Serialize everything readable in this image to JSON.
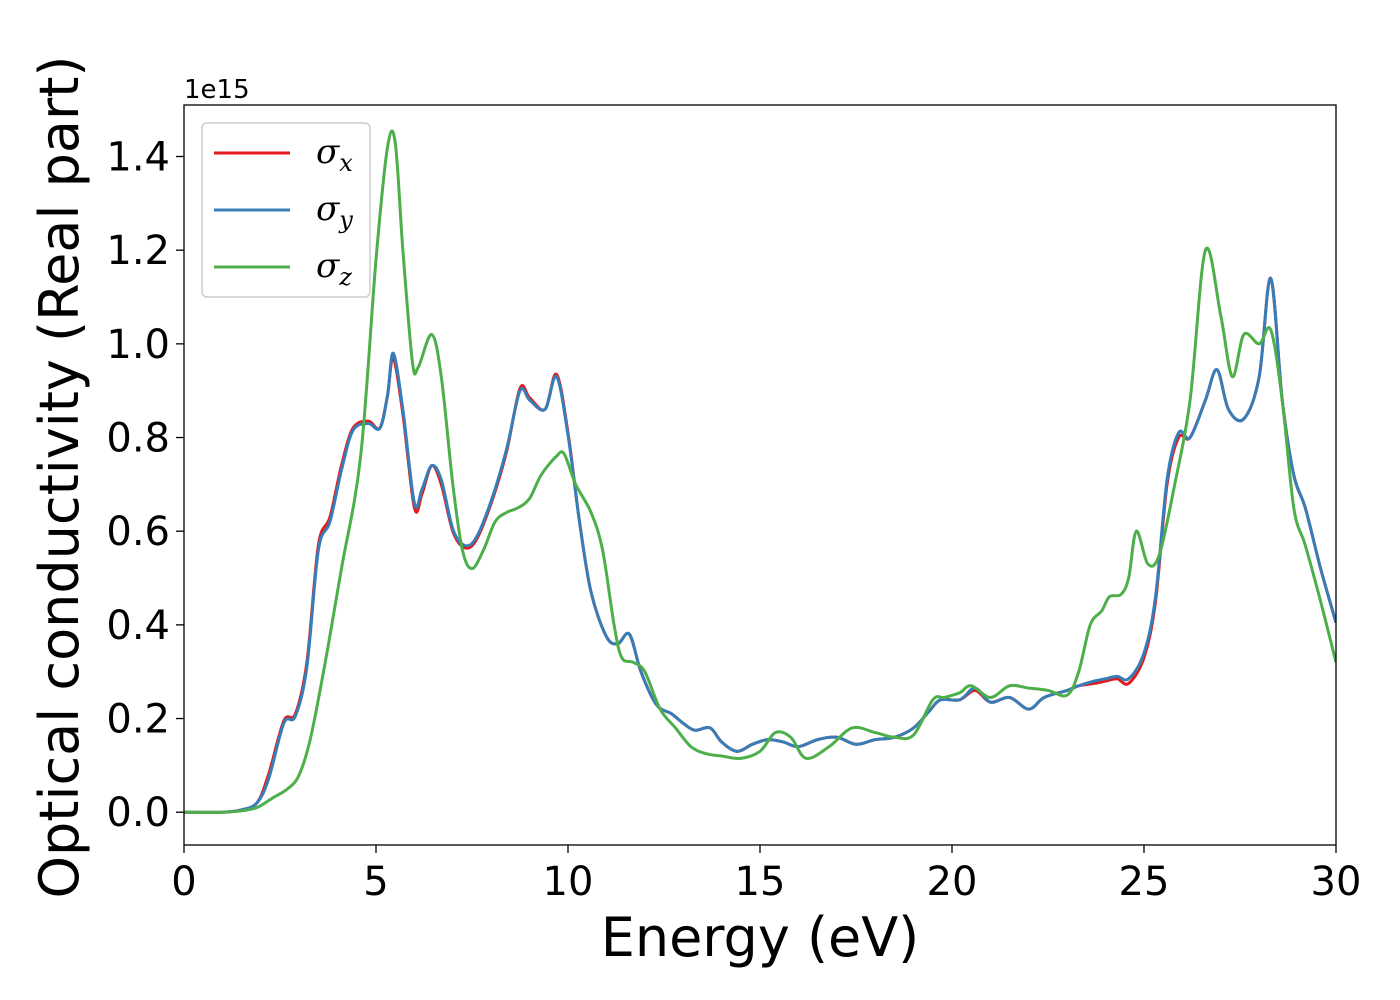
{
  "chart_data": {
    "type": "line",
    "xlabel": "Energy (eV)",
    "ylabel": "Optical conductivity (Real part)",
    "y_offset_label": "1e15",
    "xlim": [
      0,
      30
    ],
    "ylim": [
      -0.07,
      1.51
    ],
    "xticks": [
      0,
      5,
      10,
      15,
      20,
      25,
      30
    ],
    "xtick_labels": [
      "0",
      "5",
      "10",
      "15",
      "20",
      "25",
      "30"
    ],
    "yticks": [
      0.0,
      0.2,
      0.4,
      0.6,
      0.8,
      1.0,
      1.2,
      1.4
    ],
    "ytick_labels": [
      "0.0",
      "0.2",
      "0.4",
      "0.6",
      "0.8",
      "1.0",
      "1.2",
      "1.4"
    ],
    "grid": false,
    "legend_position": "top-left",
    "series": [
      {
        "name": "σx",
        "symbol": "σ",
        "subscript": "x",
        "color": "#e41a1c",
        "x": [
          0,
          1,
          1.5,
          1.9,
          2.2,
          2.6,
          2.9,
          3.2,
          3.5,
          3.8,
          4.1,
          4.4,
          4.8,
          5.1,
          5.3,
          5.45,
          5.7,
          6.0,
          6.2,
          6.45,
          6.7,
          7.0,
          7.3,
          7.6,
          8.0,
          8.4,
          8.75,
          9.0,
          9.4,
          9.7,
          10.0,
          10.3,
          10.6,
          11.0,
          11.3,
          11.6,
          11.9,
          12.3,
          12.7,
          13.0,
          13.3,
          13.7,
          14.0,
          14.4,
          14.8,
          15.2,
          15.6,
          16.0,
          16.5,
          17.0,
          17.5,
          18.0,
          18.5,
          19.0,
          19.4,
          19.7,
          20.2,
          20.6,
          21.0,
          21.5,
          22.0,
          22.4,
          23.0,
          23.3,
          23.7,
          24.0,
          24.3,
          24.6,
          25.0,
          25.3,
          25.6,
          25.9,
          26.2,
          26.6,
          26.9,
          27.2,
          27.6,
          28.0,
          28.3,
          28.6,
          28.9,
          29.2,
          29.6,
          30.0
        ],
        "y": [
          0.0,
          0.0,
          0.005,
          0.02,
          0.08,
          0.195,
          0.21,
          0.32,
          0.57,
          0.63,
          0.74,
          0.82,
          0.835,
          0.82,
          0.89,
          0.97,
          0.85,
          0.65,
          0.68,
          0.74,
          0.7,
          0.6,
          0.565,
          0.58,
          0.66,
          0.77,
          0.905,
          0.885,
          0.86,
          0.935,
          0.81,
          0.62,
          0.47,
          0.375,
          0.36,
          0.38,
          0.3,
          0.23,
          0.21,
          0.19,
          0.175,
          0.18,
          0.15,
          0.13,
          0.145,
          0.155,
          0.15,
          0.14,
          0.155,
          0.16,
          0.145,
          0.155,
          0.16,
          0.18,
          0.215,
          0.24,
          0.24,
          0.26,
          0.235,
          0.245,
          0.22,
          0.245,
          0.26,
          0.27,
          0.275,
          0.28,
          0.285,
          0.275,
          0.33,
          0.45,
          0.7,
          0.8,
          0.8,
          0.88,
          0.945,
          0.86,
          0.84,
          0.93,
          1.14,
          0.88,
          0.72,
          0.65,
          0.52,
          0.405
        ]
      },
      {
        "name": "σy",
        "symbol": "σ",
        "subscript": "y",
        "color": "#377eb8",
        "x": [
          0,
          1,
          1.5,
          1.9,
          2.2,
          2.6,
          2.9,
          3.2,
          3.5,
          3.8,
          4.1,
          4.4,
          4.8,
          5.1,
          5.3,
          5.45,
          5.7,
          6.0,
          6.2,
          6.45,
          6.7,
          7.0,
          7.3,
          7.6,
          8.0,
          8.4,
          8.75,
          9.0,
          9.4,
          9.7,
          10.0,
          10.3,
          10.6,
          11.0,
          11.3,
          11.6,
          11.9,
          12.3,
          12.7,
          13.0,
          13.3,
          13.7,
          14.0,
          14.4,
          14.8,
          15.2,
          15.6,
          16.0,
          16.5,
          17.0,
          17.5,
          18.0,
          18.5,
          19.0,
          19.4,
          19.7,
          20.2,
          20.6,
          21.0,
          21.5,
          22.0,
          22.4,
          23.0,
          23.3,
          23.7,
          24.0,
          24.3,
          24.6,
          25.0,
          25.3,
          25.6,
          25.9,
          26.2,
          26.6,
          26.9,
          27.2,
          27.6,
          28.0,
          28.3,
          28.6,
          28.9,
          29.2,
          29.6,
          30.0
        ],
        "y": [
          0.0,
          0.0,
          0.005,
          0.02,
          0.07,
          0.19,
          0.205,
          0.31,
          0.56,
          0.62,
          0.73,
          0.815,
          0.83,
          0.82,
          0.89,
          0.98,
          0.86,
          0.66,
          0.69,
          0.74,
          0.71,
          0.605,
          0.57,
          0.585,
          0.665,
          0.775,
          0.9,
          0.88,
          0.86,
          0.93,
          0.805,
          0.62,
          0.47,
          0.375,
          0.36,
          0.38,
          0.3,
          0.23,
          0.21,
          0.19,
          0.175,
          0.18,
          0.15,
          0.13,
          0.145,
          0.155,
          0.15,
          0.14,
          0.155,
          0.16,
          0.145,
          0.155,
          0.16,
          0.18,
          0.215,
          0.24,
          0.24,
          0.265,
          0.235,
          0.245,
          0.22,
          0.245,
          0.26,
          0.27,
          0.28,
          0.285,
          0.29,
          0.285,
          0.34,
          0.46,
          0.71,
          0.81,
          0.8,
          0.88,
          0.945,
          0.86,
          0.84,
          0.93,
          1.14,
          0.88,
          0.72,
          0.65,
          0.52,
          0.405
        ]
      },
      {
        "name": "σz",
        "symbol": "σ",
        "subscript": "z",
        "color": "#4daf4a",
        "x": [
          0,
          1,
          1.5,
          1.9,
          2.3,
          2.7,
          3.0,
          3.3,
          3.7,
          4.1,
          4.6,
          5.0,
          5.3,
          5.5,
          5.7,
          5.95,
          6.1,
          6.45,
          6.7,
          7.0,
          7.25,
          7.5,
          7.8,
          8.1,
          8.4,
          8.7,
          9.0,
          9.3,
          9.7,
          9.9,
          10.2,
          10.6,
          10.9,
          11.2,
          11.4,
          11.7,
          12.0,
          12.4,
          12.8,
          13.2,
          13.6,
          14.0,
          14.5,
          15.0,
          15.4,
          15.8,
          16.2,
          16.8,
          17.4,
          18.0,
          18.5,
          19.0,
          19.5,
          19.8,
          20.2,
          20.5,
          21.0,
          21.5,
          22.0,
          22.5,
          23.0,
          23.3,
          23.6,
          23.9,
          24.1,
          24.4,
          24.6,
          24.8,
          25.1,
          25.4,
          25.8,
          26.2,
          26.6,
          27.0,
          27.3,
          27.6,
          28.0,
          28.3,
          28.6,
          28.9,
          29.2,
          29.6,
          30.0
        ],
        "y": [
          0.0,
          0.0,
          0.003,
          0.01,
          0.03,
          0.05,
          0.08,
          0.16,
          0.33,
          0.52,
          0.76,
          1.18,
          1.42,
          1.43,
          1.2,
          0.96,
          0.95,
          1.02,
          0.93,
          0.7,
          0.56,
          0.52,
          0.56,
          0.62,
          0.64,
          0.65,
          0.67,
          0.72,
          0.76,
          0.765,
          0.7,
          0.64,
          0.56,
          0.4,
          0.33,
          0.32,
          0.3,
          0.22,
          0.18,
          0.14,
          0.125,
          0.12,
          0.115,
          0.13,
          0.17,
          0.16,
          0.115,
          0.14,
          0.18,
          0.17,
          0.16,
          0.165,
          0.24,
          0.245,
          0.255,
          0.27,
          0.245,
          0.27,
          0.265,
          0.26,
          0.25,
          0.3,
          0.4,
          0.43,
          0.46,
          0.465,
          0.5,
          0.6,
          0.53,
          0.55,
          0.7,
          0.88,
          1.2,
          1.06,
          0.93,
          1.02,
          1.0,
          1.03,
          0.88,
          0.65,
          0.57,
          0.45,
          0.32
        ]
      }
    ]
  }
}
